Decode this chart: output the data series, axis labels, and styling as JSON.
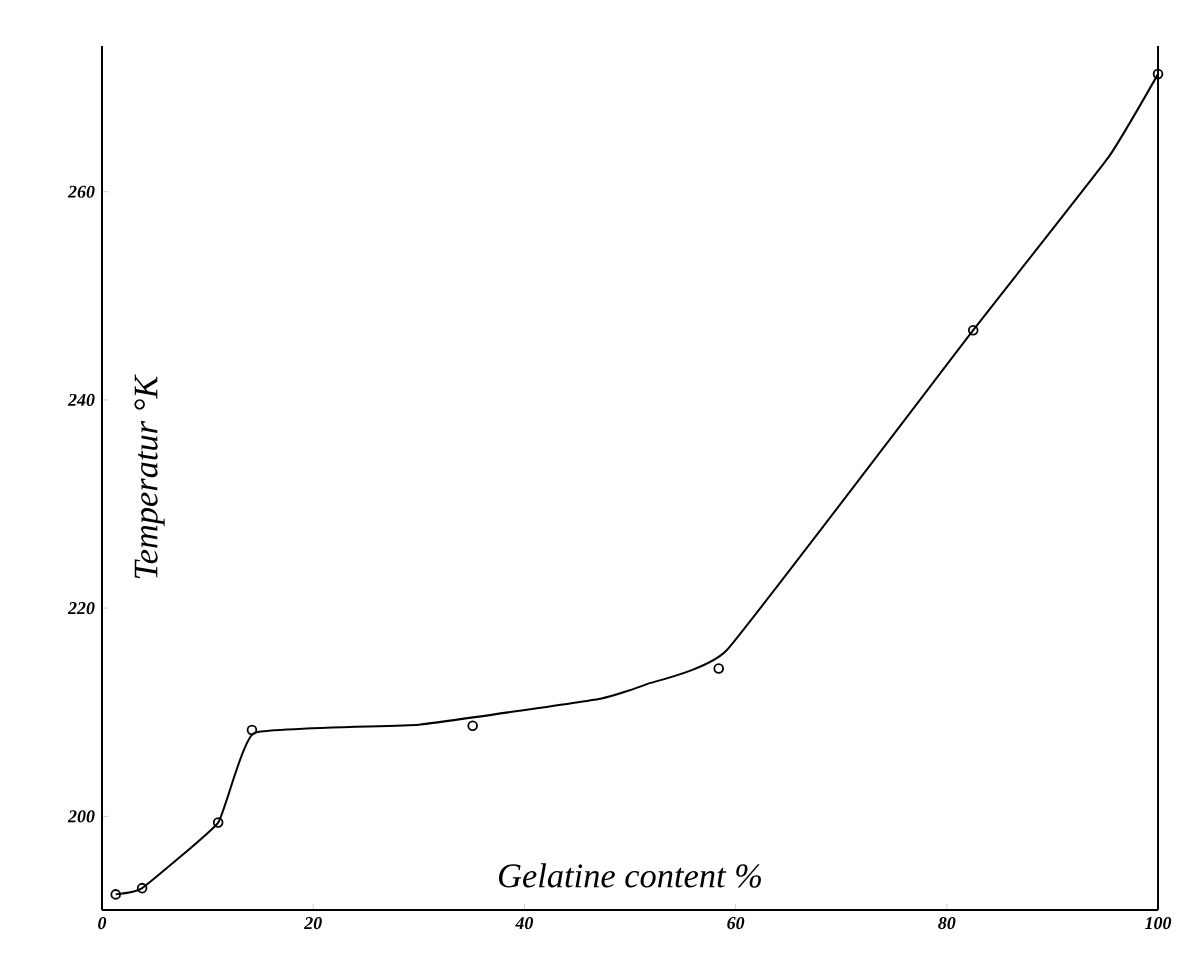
{
  "chart_data": {
    "type": "line",
    "xlabel": "Gelatine content %",
    "ylabel": "Temperatur °K",
    "xlim": [
      0,
      100
    ],
    "ylim": [
      191,
      274
    ],
    "xticks": [
      0,
      20,
      40,
      60,
      80,
      100
    ],
    "yticks": [
      200,
      220,
      240,
      260
    ],
    "grid": false,
    "series": [
      {
        "color": "#000000",
        "x": [
          1.3,
          3.8,
          11.0,
          14.4,
          30,
          47.2,
          51.6,
          59.2,
          82.5,
          95.3,
          100
        ],
        "values": [
          192.5,
          193.1,
          199.4,
          208.0,
          208.8,
          211.3,
          212.7,
          216.0,
          246.7,
          263.3,
          271.3
        ]
      },
      {
        "type": "scatter",
        "color": "#000000",
        "marker": "circle",
        "x": [
          1.3,
          3.8,
          11.0,
          14.2,
          35.1,
          58.4,
          82.5,
          100
        ],
        "values": [
          192.5,
          193.1,
          199.4,
          208.3,
          208.7,
          214.2,
          246.7,
          271.3
        ]
      }
    ]
  }
}
